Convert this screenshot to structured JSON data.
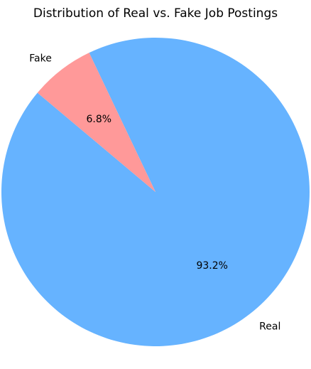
{
  "chart_data": {
    "type": "pie",
    "title": "Distribution of Real vs. Fake Job Postings",
    "slices": [
      {
        "label": "Real",
        "value": 93.2,
        "pct_label": "93.2%",
        "color": "#66b3ff"
      },
      {
        "label": "Fake",
        "value": 6.8,
        "pct_label": "6.8%",
        "color": "#ff9999"
      }
    ],
    "start_angle_deg": 140,
    "direction": "counterclockwise"
  }
}
